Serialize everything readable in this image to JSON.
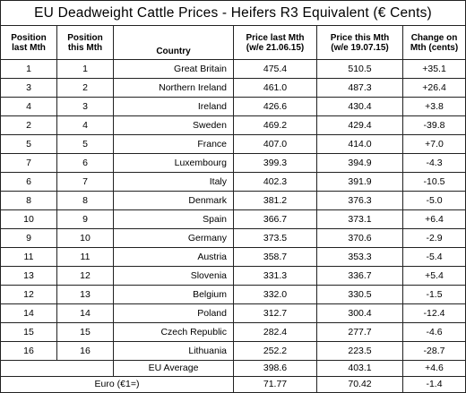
{
  "title": "EU Deadweight Cattle Prices - Heifers R3 Equivalent (€ Cents)",
  "headers": {
    "pos_last": [
      "Position",
      "last Mth"
    ],
    "pos_this": [
      "Position",
      "this Mth"
    ],
    "country": "Country",
    "price_last": [
      "Price last Mth",
      "(w/e 21.06.15)"
    ],
    "price_this": [
      "Price this Mth",
      "(w/e 19.07.15)"
    ],
    "change": [
      "Change on",
      "Mth (cents)"
    ]
  },
  "rows": [
    {
      "pos_last": "1",
      "pos_this": "1",
      "country": "Great Britain",
      "price_last": "475.4",
      "price_this": "510.5",
      "change": "+35.1"
    },
    {
      "pos_last": "3",
      "pos_this": "2",
      "country": "Northern Ireland",
      "price_last": "461.0",
      "price_this": "487.3",
      "change": "+26.4"
    },
    {
      "pos_last": "4",
      "pos_this": "3",
      "country": "Ireland",
      "price_last": "426.6",
      "price_this": "430.4",
      "change": "+3.8"
    },
    {
      "pos_last": "2",
      "pos_this": "4",
      "country": "Sweden",
      "price_last": "469.2",
      "price_this": "429.4",
      "change": "-39.8"
    },
    {
      "pos_last": "5",
      "pos_this": "5",
      "country": "France",
      "price_last": "407.0",
      "price_this": "414.0",
      "change": "+7.0"
    },
    {
      "pos_last": "7",
      "pos_this": "6",
      "country": "Luxembourg",
      "price_last": "399.3",
      "price_this": "394.9",
      "change": "-4.3"
    },
    {
      "pos_last": "6",
      "pos_this": "7",
      "country": "Italy",
      "price_last": "402.3",
      "price_this": "391.9",
      "change": "-10.5"
    },
    {
      "pos_last": "8",
      "pos_this": "8",
      "country": "Denmark",
      "price_last": "381.2",
      "price_this": "376.3",
      "change": "-5.0"
    },
    {
      "pos_last": "10",
      "pos_this": "9",
      "country": "Spain",
      "price_last": "366.7",
      "price_this": "373.1",
      "change": "+6.4"
    },
    {
      "pos_last": "9",
      "pos_this": "10",
      "country": "Germany",
      "price_last": "373.5",
      "price_this": "370.6",
      "change": "-2.9"
    },
    {
      "pos_last": "11",
      "pos_this": "11",
      "country": "Austria",
      "price_last": "358.7",
      "price_this": "353.3",
      "change": "-5.4"
    },
    {
      "pos_last": "13",
      "pos_this": "12",
      "country": "Slovenia",
      "price_last": "331.3",
      "price_this": "336.7",
      "change": "+5.4"
    },
    {
      "pos_last": "12",
      "pos_this": "13",
      "country": "Belgium",
      "price_last": "332.0",
      "price_this": "330.5",
      "change": "-1.5"
    },
    {
      "pos_last": "14",
      "pos_this": "14",
      "country": "Poland",
      "price_last": "312.7",
      "price_this": "300.4",
      "change": "-12.4"
    },
    {
      "pos_last": "15",
      "pos_this": "15",
      "country": "Czech Republic",
      "price_last": "282.4",
      "price_this": "277.7",
      "change": "-4.6"
    },
    {
      "pos_last": "16",
      "pos_this": "16",
      "country": "Lithuania",
      "price_last": "252.2",
      "price_this": "223.5",
      "change": "-28.7"
    }
  ],
  "eu_average": {
    "label": "EU Average",
    "price_last": "398.6",
    "price_this": "403.1",
    "change": "+4.6"
  },
  "euro_rate": {
    "label": "Euro (€1=)",
    "price_last": "71.77",
    "price_this": "70.42",
    "change": "-1.4"
  }
}
